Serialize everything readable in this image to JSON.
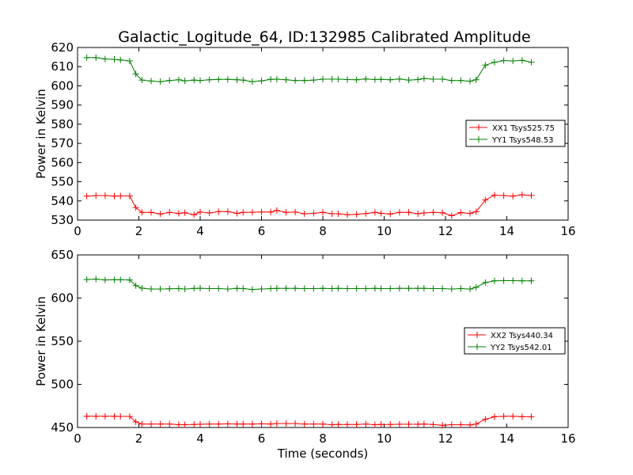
{
  "figure": {
    "title": "Galactic_Logitude_64, ID:132985 Calibrated Amplitude"
  },
  "chart_data": [
    {
      "type": "line",
      "ylabel": "Power in Kelvin",
      "xlabel": "",
      "xlim": [
        0,
        16
      ],
      "ylim": [
        530,
        620
      ],
      "xticks": [
        "0",
        "2",
        "4",
        "6",
        "8",
        "10",
        "12",
        "14",
        "16"
      ],
      "yticks": [
        "530",
        "540",
        "550",
        "560",
        "570",
        "580",
        "590",
        "600",
        "610",
        "620"
      ],
      "legend_position": "center-right",
      "grid": false,
      "x": [
        0.3,
        0.6,
        0.9,
        1.2,
        1.4,
        1.7,
        1.9,
        2.1,
        2.4,
        2.7,
        3.0,
        3.3,
        3.5,
        3.8,
        4.0,
        4.3,
        4.6,
        4.9,
        5.2,
        5.4,
        5.7,
        6.0,
        6.3,
        6.5,
        6.8,
        7.1,
        7.4,
        7.7,
        8.0,
        8.3,
        8.5,
        8.8,
        9.1,
        9.4,
        9.7,
        9.9,
        10.2,
        10.5,
        10.8,
        11.1,
        11.3,
        11.6,
        11.9,
        12.2,
        12.5,
        12.8,
        13.0,
        13.3,
        13.6,
        13.9,
        14.2,
        14.5,
        14.8
      ],
      "series": [
        {
          "name": "XX1 Tsys525.75",
          "color": "#ff0000",
          "values": [
            542.5,
            542.8,
            542.8,
            542.5,
            542.6,
            542.6,
            536.5,
            534.0,
            534.0,
            533.2,
            534.0,
            533.5,
            533.8,
            532.8,
            534.2,
            533.7,
            534.4,
            534.4,
            533.5,
            534.0,
            534.1,
            534.2,
            534.2,
            535.0,
            534.0,
            534.2,
            533.3,
            533.5,
            534.0,
            533.3,
            533.3,
            532.8,
            533.0,
            533.4,
            534.0,
            533.5,
            533.2,
            534.0,
            534.0,
            533.3,
            533.7,
            534.0,
            533.8,
            532.3,
            533.9,
            533.5,
            534.4,
            540.5,
            543.0,
            542.8,
            542.5,
            543.2,
            542.8
          ]
        },
        {
          "name": "YY1 Tsys548.53",
          "color": "#008000",
          "values": [
            614.7,
            614.7,
            614.0,
            613.8,
            613.5,
            613.0,
            606.2,
            603.0,
            602.5,
            602.2,
            602.8,
            603.2,
            602.6,
            603.0,
            602.8,
            603.2,
            603.4,
            603.4,
            603.2,
            603.0,
            602.2,
            602.6,
            603.4,
            603.5,
            603.2,
            602.8,
            602.8,
            603.0,
            603.5,
            603.5,
            603.5,
            603.3,
            603.2,
            603.6,
            603.3,
            603.4,
            603.2,
            603.6,
            603.0,
            603.3,
            603.8,
            603.5,
            603.5,
            602.8,
            602.8,
            602.4,
            603.2,
            610.8,
            612.3,
            613.2,
            613.0,
            613.3,
            612.3
          ]
        }
      ]
    },
    {
      "type": "line",
      "ylabel": "Power in Kelvin",
      "xlabel": "Time (seconds)",
      "xlim": [
        0,
        16
      ],
      "ylim": [
        450,
        650
      ],
      "xticks": [
        "0",
        "2",
        "4",
        "6",
        "8",
        "10",
        "12",
        "14",
        "16"
      ],
      "yticks": [
        "450",
        "500",
        "550",
        "600",
        "650"
      ],
      "legend_position": "center-right",
      "grid": false,
      "x": [
        0.3,
        0.6,
        0.9,
        1.2,
        1.4,
        1.7,
        1.9,
        2.1,
        2.4,
        2.7,
        3.0,
        3.3,
        3.5,
        3.8,
        4.0,
        4.3,
        4.6,
        4.9,
        5.2,
        5.4,
        5.7,
        6.0,
        6.3,
        6.5,
        6.8,
        7.1,
        7.4,
        7.7,
        8.0,
        8.3,
        8.5,
        8.8,
        9.1,
        9.4,
        9.7,
        9.9,
        10.2,
        10.5,
        10.8,
        11.1,
        11.3,
        11.6,
        11.9,
        12.2,
        12.5,
        12.8,
        13.0,
        13.3,
        13.6,
        13.9,
        14.2,
        14.5,
        14.8
      ],
      "series": [
        {
          "name": "XX2 Tsys440.34",
          "color": "#ff0000",
          "values": [
            463.0,
            463.0,
            463.0,
            463.0,
            462.8,
            462.8,
            456.5,
            454.0,
            454.0,
            454.0,
            454.0,
            453.2,
            453.3,
            453.5,
            453.8,
            454.0,
            454.0,
            454.2,
            454.0,
            454.0,
            454.0,
            454.3,
            454.0,
            454.6,
            454.6,
            454.6,
            454.0,
            454.0,
            454.0,
            453.2,
            453.5,
            453.5,
            453.5,
            454.0,
            453.2,
            453.5,
            453.5,
            453.8,
            453.8,
            453.8,
            454.0,
            453.4,
            452.5,
            453.2,
            453.2,
            453.0,
            454.0,
            459.5,
            462.5,
            463.0,
            463.0,
            462.5,
            462.5
          ]
        },
        {
          "name": "YY2 Tsys542.01",
          "color": "#008000",
          "values": [
            621.5,
            622.0,
            621.0,
            621.2,
            621.2,
            621.0,
            614.5,
            611.5,
            610.5,
            610.5,
            610.8,
            611.0,
            610.5,
            611.2,
            611.3,
            611.0,
            611.0,
            610.5,
            611.2,
            611.0,
            610.0,
            610.5,
            611.0,
            611.2,
            611.2,
            611.2,
            611.0,
            611.0,
            611.2,
            611.0,
            611.2,
            611.0,
            611.0,
            611.0,
            611.2,
            611.0,
            611.0,
            611.2,
            611.2,
            611.2,
            611.3,
            611.0,
            611.0,
            610.5,
            611.0,
            610.5,
            612.5,
            618.0,
            620.0,
            620.2,
            620.2,
            620.0,
            620.0
          ]
        }
      ]
    }
  ]
}
